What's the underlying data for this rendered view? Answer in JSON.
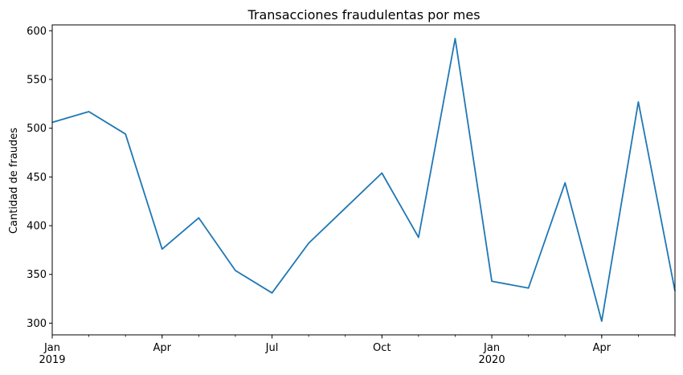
{
  "chart_data": {
    "type": "line",
    "title": "Transacciones fraudulentas por mes",
    "xlabel": "",
    "ylabel": "Cantidad de fraudes",
    "x": [
      "2019-01",
      "2019-02",
      "2019-03",
      "2019-04",
      "2019-05",
      "2019-06",
      "2019-07",
      "2019-08",
      "2019-09",
      "2019-10",
      "2019-11",
      "2019-12",
      "2020-01",
      "2020-02",
      "2020-03",
      "2020-04",
      "2020-05",
      "2020-06"
    ],
    "series": [
      {
        "values": [
          506,
          517,
          494,
          376,
          408,
          354,
          331,
          382,
          418,
          454,
          388,
          592,
          343,
          336,
          444,
          302,
          527,
          333
        ]
      }
    ],
    "ylim": [
      288,
      606
    ],
    "y_ticks": [
      300,
      350,
      400,
      450,
      500,
      550,
      600
    ],
    "x_tick_labels": [
      {
        "month": "2019-01",
        "label": "Jan",
        "sublabel": "2019"
      },
      {
        "month": "2019-04",
        "label": "Apr",
        "sublabel": ""
      },
      {
        "month": "2019-07",
        "label": "Jul",
        "sublabel": ""
      },
      {
        "month": "2019-10",
        "label": "Oct",
        "sublabel": ""
      },
      {
        "month": "2020-01",
        "label": "Jan",
        "sublabel": "2020"
      },
      {
        "month": "2020-04",
        "label": "Apr",
        "sublabel": ""
      }
    ],
    "grid": false,
    "line_color": "#1f77b4"
  }
}
